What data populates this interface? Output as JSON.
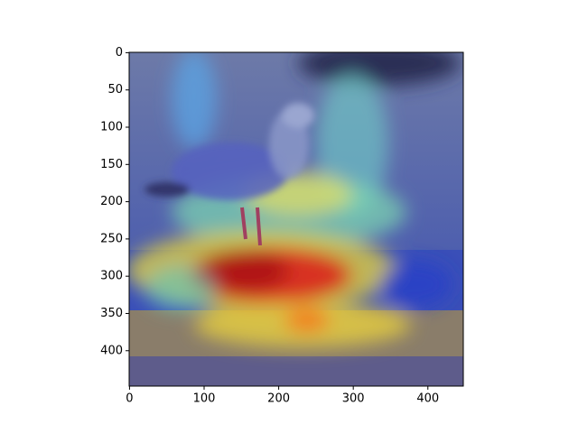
{
  "chart_data": {
    "type": "image",
    "xlim": [
      -0.5,
      447.5
    ],
    "ylim": [
      447.5,
      -0.5
    ],
    "xticks": [
      0,
      100,
      200,
      300,
      400
    ],
    "yticks": [
      0,
      50,
      100,
      150,
      200,
      250,
      300,
      350,
      400
    ]
  }
}
